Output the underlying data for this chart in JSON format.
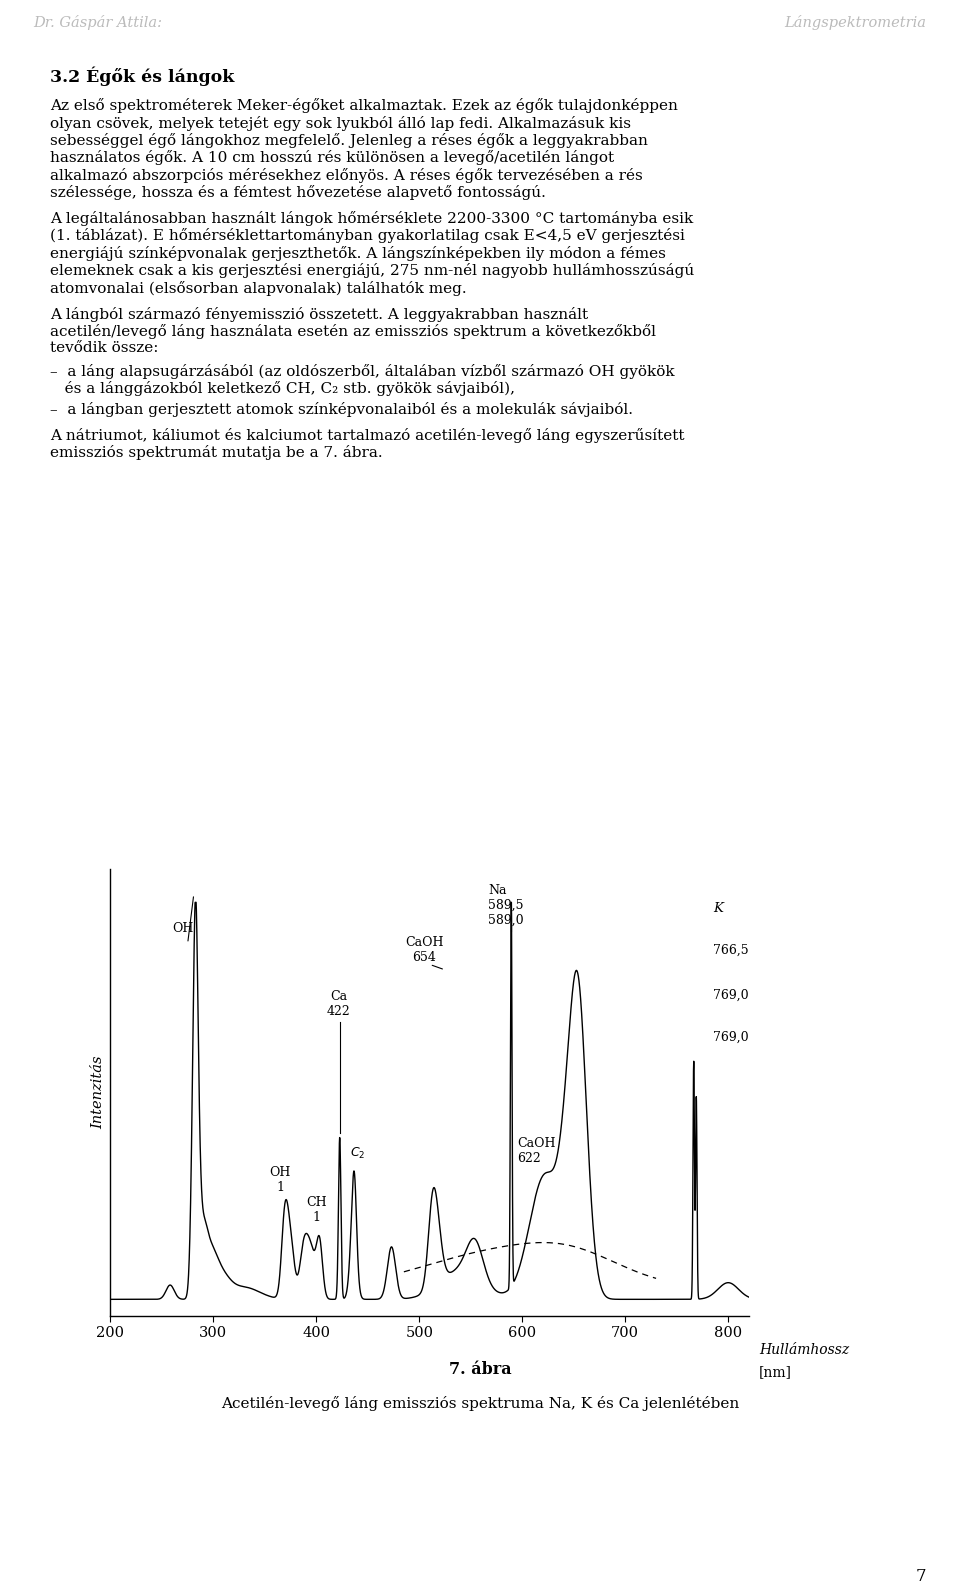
{
  "header_left": "Dr. Gáspár Attila:",
  "header_right": "Lángspektrometria",
  "page_number": "7",
  "section_title": "3.2 Égők és lángok",
  "para1": "Az első spektrométerek ",
  "para1_italic": "Meker-égőket",
  "para1_rest": " alkalmaztak. Ezek az égők tulajdonképpen olyan csövek, melyek tetejét egy sok lyukból álló lap fedi. Alkalmazásuk kis sebességgel égő lángokhoz megfelelő. Jelenleg a ",
  "para1_italic2": "réses égők",
  "para1_rest2": " a leggyakrabban használatos égők. A 10 cm hosszú rés különösen a levegő/acetilén lángot alkalmazó abszorpciós mérésekhez előnyös. A réses égők tervezésében a rés szélessége, hossza és a fémtest hővezetése alapvető fontosságú.",
  "para2": "A legáltalánosabban használt lángok hőmérséklete 2200-3300 °C tartományba esik (1. táblázat). E hőmérséklettartományban gyakorlatilag csak E<4,5 eV gerjesztési energiájú színképvonalak gerjeszthetők. A lángszínképekben ily módon a fémes elemeknek csak a kis gerjesztési energiájú, 275 nm-nél nagyobb hullámhosszuságú atomvonalai (elsősorban alapvonalak) találhatók meg.",
  "para3": "A lángból származó fényemisszió összetett. A leggyakrabban használt acetilén/levegő láng használata esetén az emissziós spektrum a következőkből tevődik össze:",
  "para4": "–  a láng alapsugárzásából (az oldószerből, általában vízből származó OH gyökök és a lánggázokból keletkező CH, C2 stb. gyökök sávjaiból),",
  "para5": "–  a lángban gerjesztett atomok színképvonalaiból és a molekulák sávjaiból.",
  "para6": "A nátriumot, káliumot és kalciumot tartalmazó acetilén-levegő láng egyszerűsített emissziós spektrumát mutatja be a 7. ábra.",
  "fig_caption_bold": "7. ábra",
  "fig_caption": "Acetilén-levegő láng emissziós spektruma Na, K és Ca jelenlétében",
  "xlabel": "Hullámhossz",
  "xlabel_unit": "[nm]",
  "ylabel": "Intenzitás",
  "x_ticks": [
    200,
    300,
    400,
    500,
    600,
    700,
    800
  ],
  "x_min": 200,
  "x_max": 820,
  "background_color": "#ffffff",
  "text_color": "#000000"
}
